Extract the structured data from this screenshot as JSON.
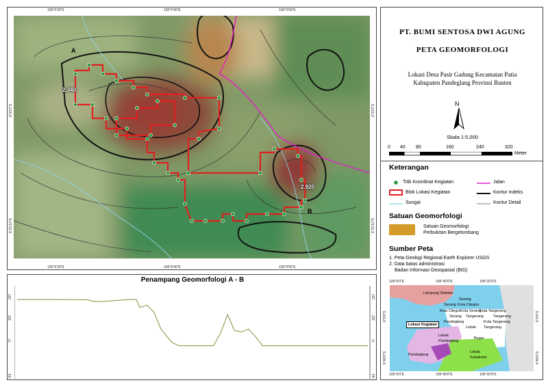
{
  "map": {
    "top_coords": [
      "105°5'30\"E",
      "105°5'40\"E",
      "105°5'50\"E"
    ],
    "bottom_coords": [
      "105°5'30\"E",
      "105°5'40\"E",
      "105°5'50\"E"
    ],
    "left_coords": [
      "6°21'0\"S",
      "6°21'10\"S"
    ],
    "right_coords": [
      "6°21'0\"S",
      "6°21'10\"S"
    ],
    "point_a": "A",
    "point_b": "B",
    "elev_1": "2.340",
    "elev_2": "2.920"
  },
  "profile": {
    "title": "Penampang Geomorfologi A - B",
    "y_ticks": [
      "227",
      "157",
      "77",
      "-53"
    ],
    "chart_data": {
      "type": "line",
      "title": "Penampang Geomorfologi A - B",
      "y_ticks": [
        227,
        157,
        77,
        -53
      ],
      "ylim": [
        -53,
        227
      ],
      "series": [
        {
          "x": [
            0,
            0.03,
            0.1,
            0.2,
            0.22,
            0.25,
            0.3,
            0.32,
            0.34,
            0.35,
            0.37,
            0.39,
            0.41,
            0.44,
            0.46,
            0.5,
            0.53,
            0.56,
            0.58,
            0.6,
            0.62,
            0.64,
            0.66,
            0.68,
            0.7,
            0.75,
            0.8,
            0.9,
            1.0
          ],
          "values": [
            227,
            227,
            227,
            226,
            219,
            220,
            225,
            227,
            227,
            197,
            206,
            180,
            117,
            69,
            55,
            55,
            55,
            55,
            102,
            171,
            111,
            106,
            117,
            88,
            55,
            55,
            55,
            55,
            55
          ]
        }
      ]
    }
  },
  "legend": {
    "company": "PT. BUMI SENTOSA DWI AGUNG",
    "map_title": "PETA GEOMORFOLOGI",
    "location_1": "Lokasi Desa Pasir Gadung Kecamatan Patia",
    "location_2": "Kabupaten Pandeglang Provinsi Banten",
    "north": "N",
    "scale_text": "Skala  1:5,000",
    "scale_ticks": [
      "0",
      "40",
      "80",
      "160",
      "240",
      "320"
    ],
    "scale_unit": "Meter",
    "keterangan": "Keterangan",
    "items": {
      "titik": "Titik Koordinat Kegiatan",
      "jalan": "Jalan",
      "blok": "Blok Lokasi Kegiatan",
      "kontur_indeks": "Kontur Indeks",
      "sungai": "Sungai",
      "kontur_detail": "Kontur Detail"
    },
    "satuan_title": "Satuan Geomorfologi",
    "satuan_1": "Satuan Geomorfologi",
    "satuan_2": "Perbukitan Bergelombang",
    "satuan_color": "#d49a2a",
    "sumber_title": "Sumber Peta",
    "sumber_1": "1. Peta Geologi Regional Earth Explorer USGS",
    "sumber_2": "2. Data batas administrasi",
    "sumber_3": "Badan Informasi Geospasial (BIG)",
    "inset": {
      "top_coords": [
        "105°0'0\"E",
        "105°40'0\"E",
        "106°20'0\"E"
      ],
      "bottom_coords": [
        "105°0'0\"E",
        "105°40'0\"E",
        "106°20'0\"E"
      ],
      "left_coords": [
        "6°0'0\"S",
        "6°40'0\"S"
      ],
      "right_coords": [
        "6°0'0\"S",
        "6°40'0\"S"
      ],
      "places": [
        "Lampung Selatan",
        "Serang",
        "Serang",
        "Kota Cilegon",
        "Kota Cilegon",
        "Kota Serang",
        "Kota Tangerang",
        "Serang",
        "Tangerang",
        "Tangerang",
        "Pandeglang",
        "Kota Tangerang",
        "Lebak",
        "Tangerang",
        "Lebak",
        "Pandeglang",
        "Bogor",
        "Pandeglang",
        "Lebak",
        "Sukabumi"
      ],
      "callout": "Lokasi Kegiatan"
    }
  }
}
